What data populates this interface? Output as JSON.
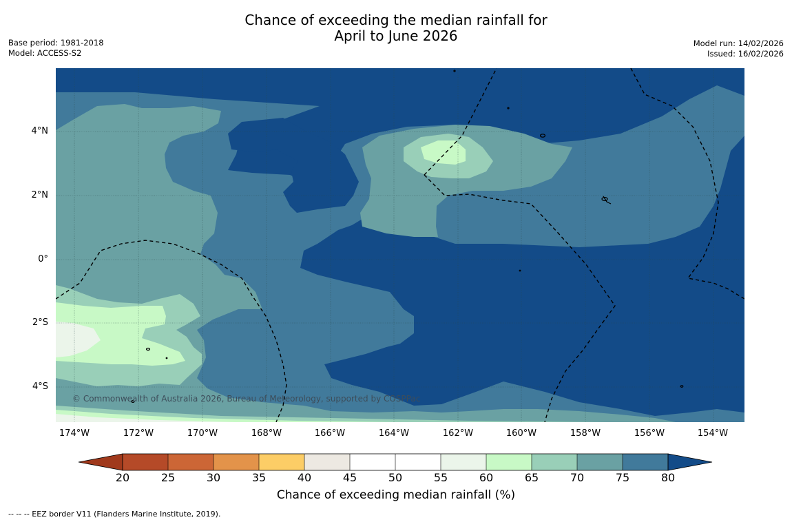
{
  "title": {
    "line1": "Chance of exceeding the median rainfall for",
    "line2": "April to June 2026"
  },
  "meta": {
    "base_period": "Base period: 1981-2018",
    "model": "Model: ACCESS-S2",
    "model_run": "Model run: 14/02/2026",
    "issued": "Issued: 16/02/2026"
  },
  "map": {
    "copyright": "© Commonwealth of Australia 2026, Bureau of Meteorology, supported by COSPPac",
    "latitude_labels": [
      "4°N",
      "2°N",
      "0°",
      "2°S",
      "4°S"
    ],
    "longitude_labels": [
      "174°W",
      "172°W",
      "170°W",
      "168°W",
      "166°W",
      "164°W",
      "162°W",
      "160°W",
      "158°W",
      "156°W",
      "154°W"
    ]
  },
  "legend": {
    "title": "Chance of exceeding median rainfall (%)",
    "ticks": [
      "20",
      "25",
      "30",
      "35",
      "40",
      "45",
      "50",
      "55",
      "60",
      "65",
      "70",
      "75",
      "80"
    ],
    "colors": [
      "#a0391c",
      "#b54a28",
      "#cc6636",
      "#e3934a",
      "#fccd66",
      "#ede9e2",
      "#ffffff",
      "#ffffff",
      "#ebf5ea",
      "#c8f9c6",
      "#99cfb8",
      "#6aa1a3",
      "#417a9b",
      "#134b88"
    ]
  },
  "palette": {
    "p80": "#134b88",
    "p75": "#417a9b",
    "p70": "#6aa1a3",
    "p65": "#99cfb8",
    "p60": "#c8f9c6",
    "p55": "#ebf5ea"
  },
  "footnote": "--  --  -- EEZ border V11 (Flanders Marine Institute, 2019)."
}
